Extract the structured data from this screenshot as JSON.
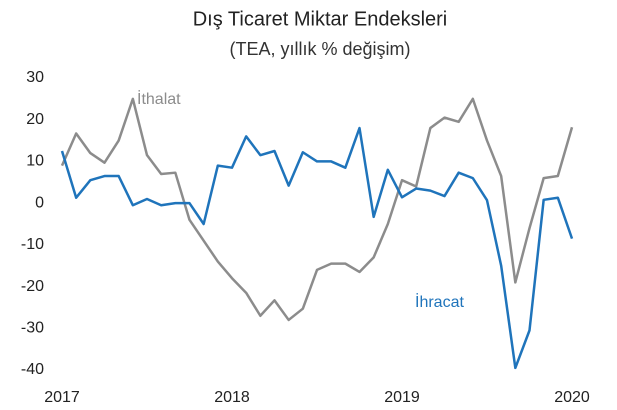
{
  "chart_data": {
    "type": "line",
    "title": "Dış Ticaret Miktar Endeksleri",
    "subtitle": "(TEA, yıllık % değişim)",
    "categories": [
      "2017",
      null,
      null,
      null,
      null,
      null,
      null,
      null,
      null,
      null,
      null,
      null,
      "2018",
      null,
      null,
      null,
      null,
      null,
      null,
      null,
      null,
      null,
      null,
      null,
      "2019",
      null,
      null,
      null,
      null,
      null,
      null,
      null,
      null,
      null,
      null,
      null,
      "2020"
    ],
    "series": [
      {
        "name": "İthalat",
        "color": "#8c8c8c",
        "values": [
          9,
          16.7,
          12,
          9.7,
          15,
          25,
          11.5,
          7,
          7.3,
          -4,
          -9,
          -14,
          -18,
          -21.5,
          -27,
          -23.3,
          -28,
          -25.3,
          -16,
          -14.5,
          -14.5,
          -16.5,
          -13,
          -5,
          5.5,
          4,
          18,
          20.5,
          19.5,
          25,
          15,
          6.5,
          -19,
          -6,
          6,
          6.5,
          18.2
        ]
      },
      {
        "name": "İhracat",
        "color": "#1f74bb",
        "values": [
          12.5,
          1.3,
          5.5,
          6.5,
          6.5,
          -0.5,
          1,
          -0.5,
          0,
          0,
          -5,
          9,
          8.5,
          16,
          11.5,
          12.5,
          4.2,
          12.2,
          10,
          10,
          8.5,
          18,
          -3.3,
          8,
          1.4,
          3.5,
          3,
          1.7,
          7.3,
          6,
          0.7,
          -15,
          -39.5,
          -30.5,
          0.8,
          1.3,
          -8.5
        ]
      }
    ],
    "ylim": [
      -40,
      30
    ],
    "yticks": [
      30,
      20,
      10,
      0,
      -10,
      -20,
      -30,
      -40
    ],
    "grid": false
  }
}
